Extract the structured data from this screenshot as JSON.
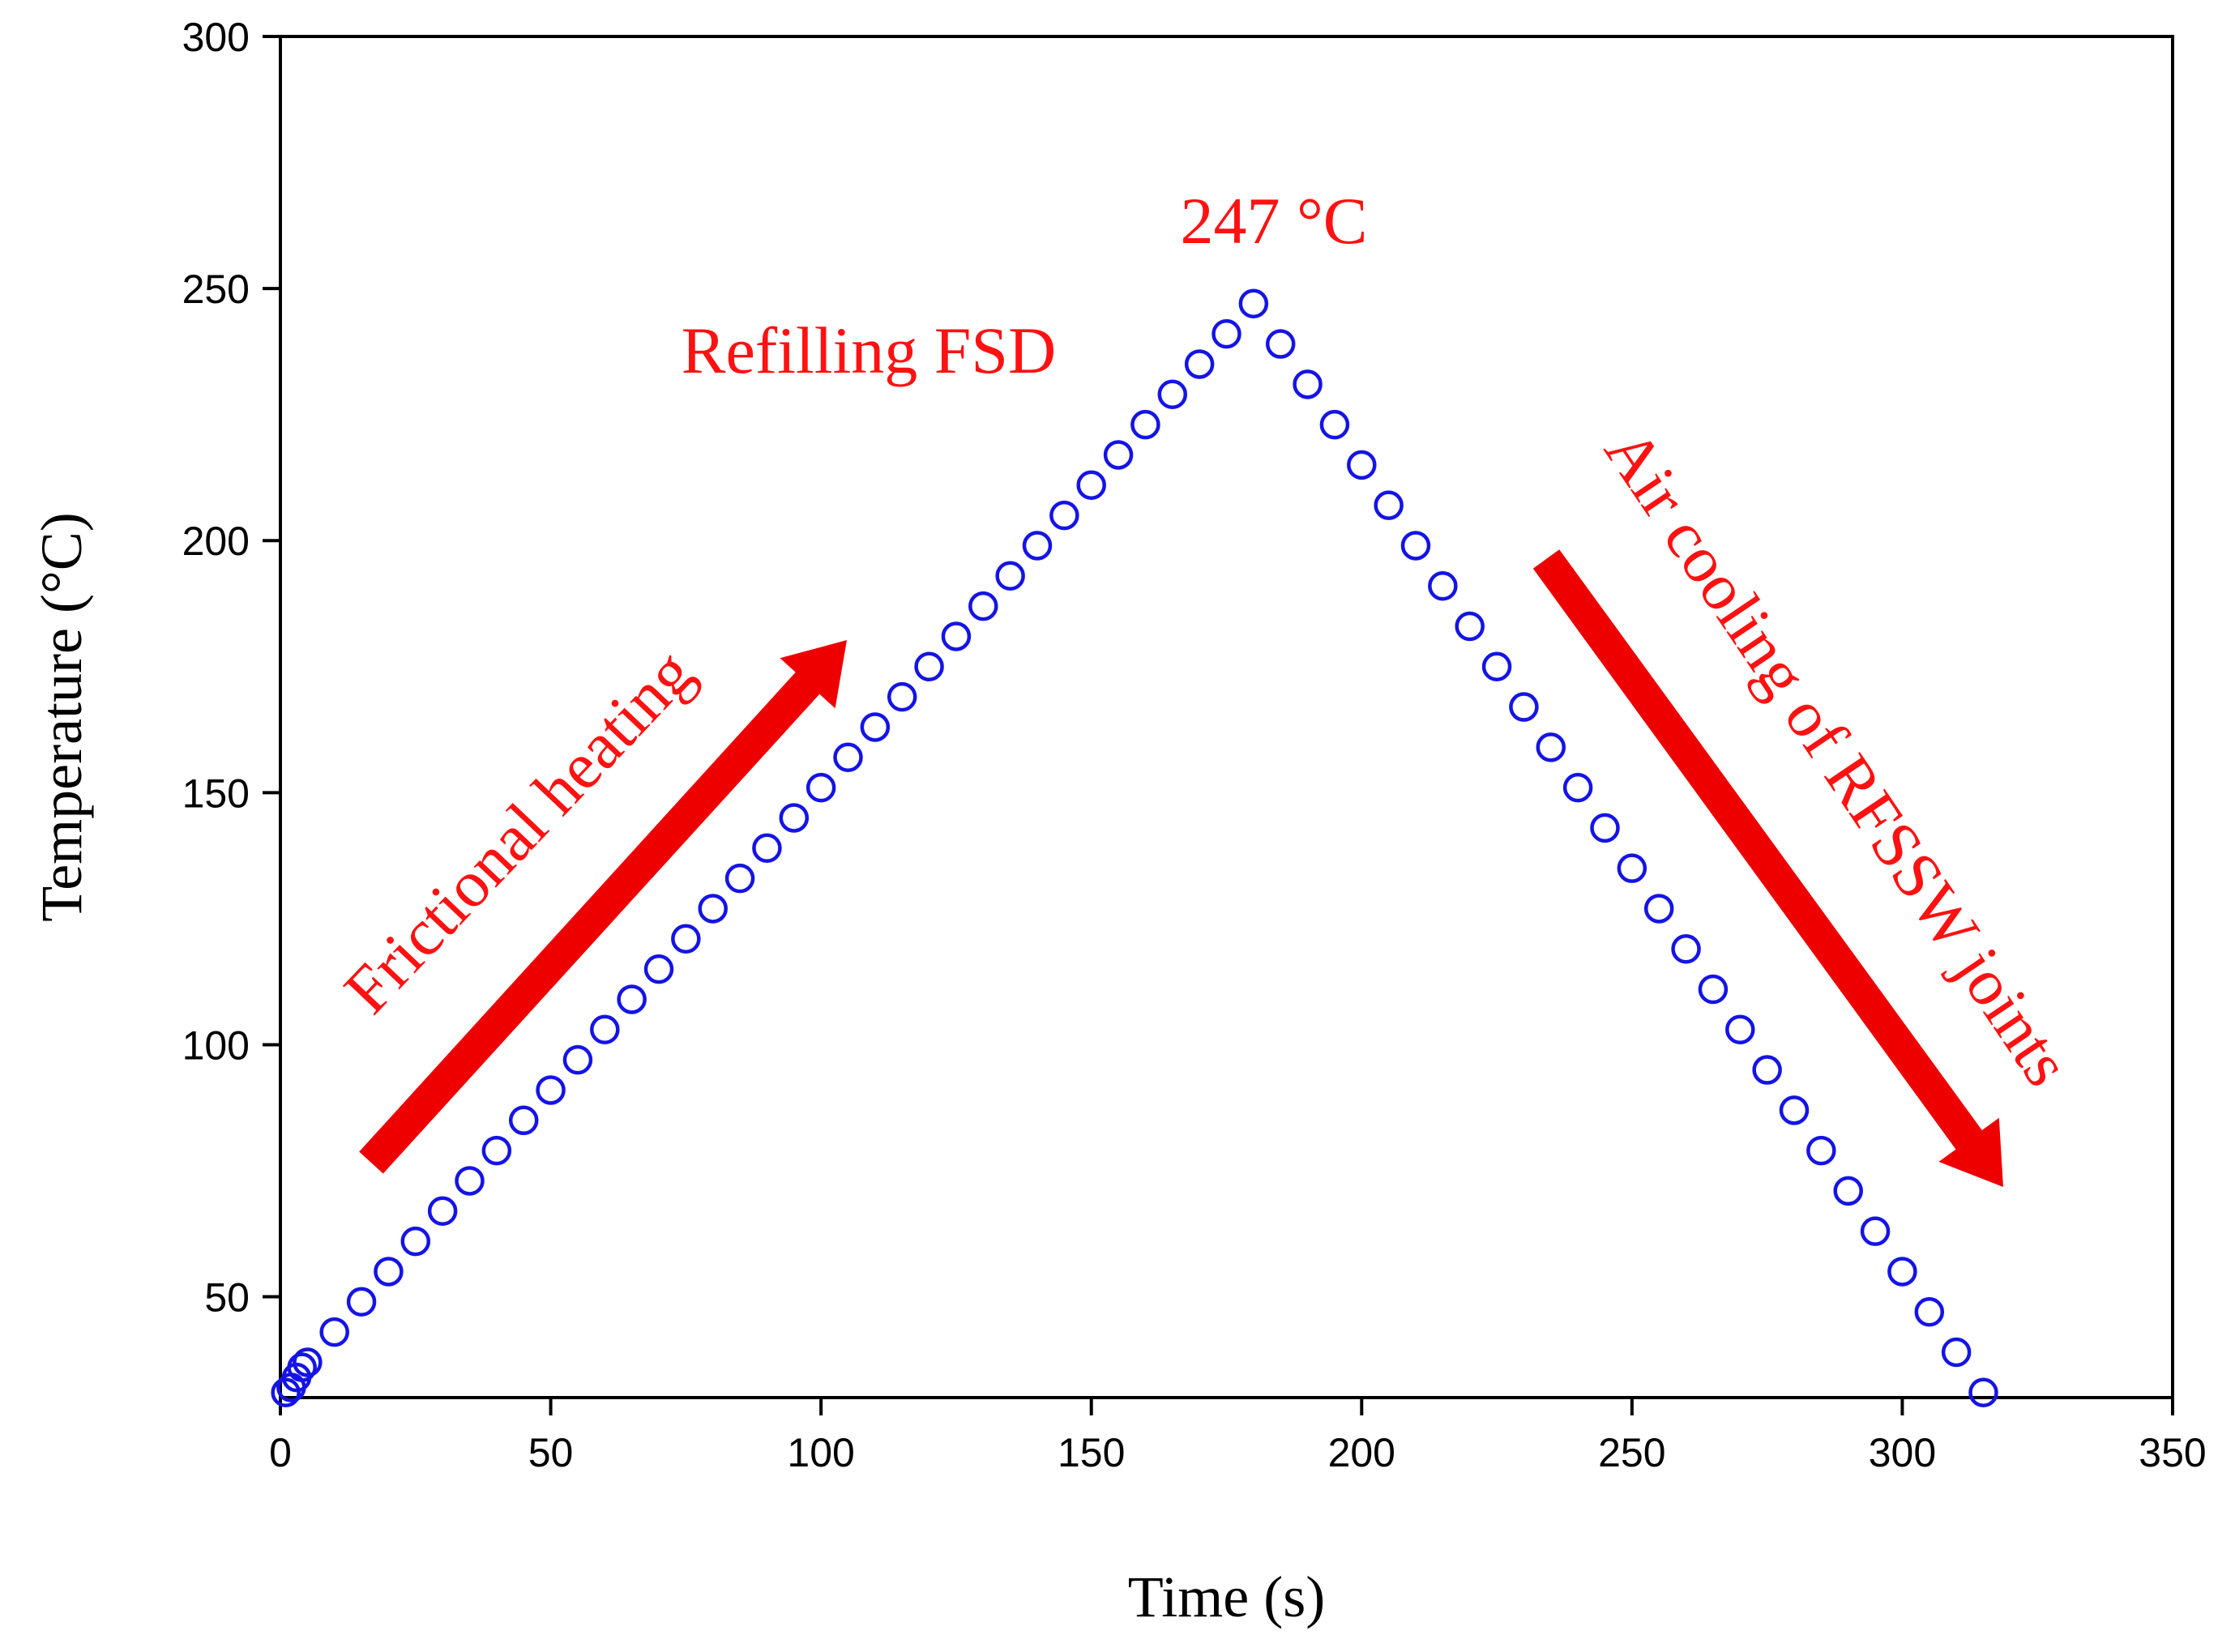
{
  "chart_data": {
    "type": "scatter",
    "title": "",
    "xlabel": "Time (s)",
    "ylabel": "Temperature (°C)",
    "xlim": [
      0,
      350
    ],
    "ylim": [
      30,
      300
    ],
    "xticks": [
      0,
      50,
      100,
      150,
      200,
      250,
      300,
      350
    ],
    "yticks": [
      50,
      100,
      150,
      200,
      250,
      300
    ],
    "grid": false,
    "marker": "open-circle",
    "series": [
      {
        "name": "Temperature",
        "color": "#1414e6",
        "x": [
          1,
          2,
          3,
          4,
          5,
          10,
          15,
          20,
          25,
          30,
          35,
          40,
          45,
          50,
          55,
          60,
          65,
          70,
          75,
          80,
          85,
          90,
          95,
          100,
          105,
          110,
          115,
          120,
          125,
          130,
          135,
          140,
          145,
          150,
          155,
          160,
          165,
          170,
          175,
          180,
          185,
          190,
          195,
          200,
          205,
          210,
          215,
          220,
          225,
          230,
          235,
          240,
          245,
          250,
          255,
          260,
          265,
          270,
          275,
          280,
          285,
          290,
          295,
          300,
          305,
          310,
          315
        ],
        "y": [
          31,
          32,
          34,
          36,
          37,
          43,
          49,
          55,
          61,
          67,
          73,
          79,
          85,
          91,
          97,
          103,
          109,
          115,
          121,
          127,
          133,
          139,
          145,
          151,
          157,
          163,
          169,
          175,
          181,
          187,
          193,
          199,
          205,
          211,
          217,
          223,
          229,
          235,
          241,
          247,
          239,
          231,
          223,
          215,
          207,
          199,
          191,
          183,
          175,
          167,
          159,
          151,
          143,
          135,
          127,
          119,
          111,
          103,
          95,
          87,
          79,
          71,
          63,
          55,
          47,
          39,
          31
        ]
      }
    ],
    "annotations": {
      "peak": "247 °C",
      "phase_middle": "Refilling FSD",
      "phase_left": "Frictional heating",
      "phase_right": "Air cooling of RFSSW joints"
    },
    "annotation_color": "#ff1111",
    "arrow_color": "#ee0000"
  }
}
